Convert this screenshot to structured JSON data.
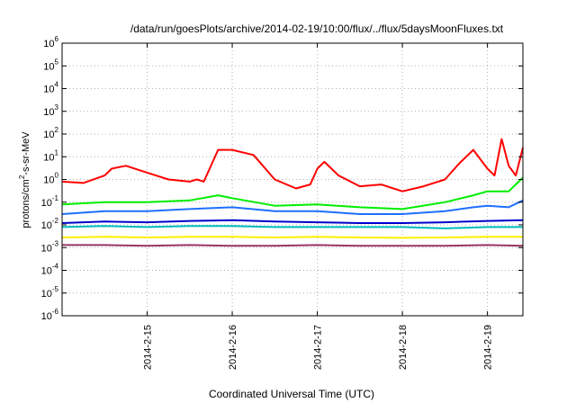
{
  "chart_data": {
    "type": "line",
    "title": "/data/run/goesPlots/archive/2014-02-19/10:00/flux/../flux/5daysMoonFluxes.txt",
    "xlabel": "Coordinated Universal Time (UTC)",
    "ylabel": "protons/cm2-s-sr-MeV",
    "ylabel_parts": {
      "pre": "protons/cm",
      "sup": "2",
      "post": "-s-sr-MeV"
    },
    "yscale": "log",
    "ylim": [
      1e-06,
      1000000.0
    ],
    "y_ticks": [
      {
        "value": 1e-06,
        "base": "10",
        "exp": "-6"
      },
      {
        "value": 1e-05,
        "base": "10",
        "exp": "-5"
      },
      {
        "value": 0.0001,
        "base": "10",
        "exp": "-4"
      },
      {
        "value": 0.001,
        "base": "10",
        "exp": "-3"
      },
      {
        "value": 0.01,
        "base": "10",
        "exp": "-2"
      },
      {
        "value": 0.1,
        "base": "10",
        "exp": "-1"
      },
      {
        "value": 1,
        "base": "10",
        "exp": "0"
      },
      {
        "value": 10.0,
        "base": "10",
        "exp": "1"
      },
      {
        "value": 100.0,
        "base": "10",
        "exp": "2"
      },
      {
        "value": 1000.0,
        "base": "10",
        "exp": "3"
      },
      {
        "value": 10000.0,
        "base": "10",
        "exp": "4"
      },
      {
        "value": 100000.0,
        "base": "10",
        "exp": "5"
      },
      {
        "value": 1000000.0,
        "base": "10",
        "exp": "6"
      }
    ],
    "xlim": [
      "2014-02-14T00:00",
      "2014-02-19T10:00"
    ],
    "x_ticks": [
      {
        "at": "2014-02-15T00:00",
        "label": "2014-2-15"
      },
      {
        "at": "2014-02-16T00:00",
        "label": "2014-2-16"
      },
      {
        "at": "2014-02-17T00:00",
        "label": "2014-2-17"
      },
      {
        "at": "2014-02-18T00:00",
        "label": "2014-2-18"
      },
      {
        "at": "2014-02-19T00:00",
        "label": "2014-2-19"
      }
    ],
    "grid": true,
    "legend": "none",
    "series": [
      {
        "color": "#ff0000",
        "x": [
          "2014-02-14T00:00",
          "2014-02-14T06:00",
          "2014-02-14T12:00",
          "2014-02-14T14:00",
          "2014-02-14T18:00",
          "2014-02-15T00:00",
          "2014-02-15T06:00",
          "2014-02-15T12:00",
          "2014-02-15T14:00",
          "2014-02-15T16:00",
          "2014-02-15T20:00",
          "2014-02-16T00:00",
          "2014-02-16T06:00",
          "2014-02-16T12:00",
          "2014-02-16T18:00",
          "2014-02-16T22:00",
          "2014-02-17T00:00",
          "2014-02-17T02:00",
          "2014-02-17T06:00",
          "2014-02-17T12:00",
          "2014-02-17T18:00",
          "2014-02-18T00:00",
          "2014-02-18T06:00",
          "2014-02-18T12:00",
          "2014-02-18T16:00",
          "2014-02-18T20:00",
          "2014-02-19T00:00",
          "2014-02-19T02:00",
          "2014-02-19T04:00",
          "2014-02-19T06:00",
          "2014-02-19T08:00",
          "2014-02-19T10:00"
        ],
        "y": [
          0.8,
          0.7,
          1.5,
          3,
          4,
          2,
          1,
          0.8,
          1,
          0.8,
          20,
          20,
          12,
          1,
          0.4,
          0.6,
          3,
          6,
          1.5,
          0.5,
          0.6,
          0.3,
          0.5,
          1,
          5,
          20,
          3,
          1.5,
          60,
          4,
          1.5,
          25
        ]
      },
      {
        "color": "#00ee00",
        "x": [
          "2014-02-14T00:00",
          "2014-02-14T12:00",
          "2014-02-15T00:00",
          "2014-02-15T12:00",
          "2014-02-15T20:00",
          "2014-02-16T00:00",
          "2014-02-16T12:00",
          "2014-02-17T00:00",
          "2014-02-17T12:00",
          "2014-02-18T00:00",
          "2014-02-18T12:00",
          "2014-02-18T20:00",
          "2014-02-19T00:00",
          "2014-02-19T06:00",
          "2014-02-19T10:00"
        ],
        "y": [
          0.08,
          0.1,
          0.1,
          0.12,
          0.2,
          0.15,
          0.07,
          0.08,
          0.06,
          0.05,
          0.1,
          0.2,
          0.3,
          0.3,
          1.2
        ]
      },
      {
        "color": "#1e6fff",
        "x": [
          "2014-02-14T00:00",
          "2014-02-14T12:00",
          "2014-02-15T00:00",
          "2014-02-15T12:00",
          "2014-02-16T00:00",
          "2014-02-16T12:00",
          "2014-02-17T00:00",
          "2014-02-17T12:00",
          "2014-02-18T00:00",
          "2014-02-18T12:00",
          "2014-02-18T20:00",
          "2014-02-19T00:00",
          "2014-02-19T06:00",
          "2014-02-19T10:00"
        ],
        "y": [
          0.03,
          0.04,
          0.04,
          0.05,
          0.06,
          0.04,
          0.04,
          0.03,
          0.03,
          0.04,
          0.06,
          0.07,
          0.06,
          0.12
        ]
      },
      {
        "color": "#0000cc",
        "x": [
          "2014-02-14T00:00",
          "2014-02-14T12:00",
          "2014-02-15T00:00",
          "2014-02-15T12:00",
          "2014-02-16T00:00",
          "2014-02-16T12:00",
          "2014-02-17T00:00",
          "2014-02-17T12:00",
          "2014-02-18T00:00",
          "2014-02-18T12:00",
          "2014-02-19T00:00",
          "2014-02-19T10:00"
        ],
        "y": [
          0.012,
          0.014,
          0.013,
          0.015,
          0.016,
          0.014,
          0.013,
          0.012,
          0.012,
          0.013,
          0.015,
          0.016
        ]
      },
      {
        "color": "#00bbbb",
        "x": [
          "2014-02-14T00:00",
          "2014-02-14T12:00",
          "2014-02-15T00:00",
          "2014-02-15T12:00",
          "2014-02-16T00:00",
          "2014-02-16T12:00",
          "2014-02-17T00:00",
          "2014-02-17T12:00",
          "2014-02-18T00:00",
          "2014-02-18T12:00",
          "2014-02-19T00:00",
          "2014-02-19T10:00"
        ],
        "y": [
          0.008,
          0.009,
          0.008,
          0.009,
          0.009,
          0.008,
          0.008,
          0.008,
          0.008,
          0.007,
          0.008,
          0.008
        ]
      },
      {
        "color": "#ffee00",
        "x": [
          "2014-02-14T00:00",
          "2014-02-14T12:00",
          "2014-02-15T00:00",
          "2014-02-15T12:00",
          "2014-02-16T00:00",
          "2014-02-16T12:00",
          "2014-02-17T00:00",
          "2014-02-17T12:00",
          "2014-02-18T00:00",
          "2014-02-18T12:00",
          "2014-02-19T00:00",
          "2014-02-19T10:00"
        ],
        "y": [
          0.0028,
          0.003,
          0.0028,
          0.003,
          0.003,
          0.0028,
          0.003,
          0.0028,
          0.0027,
          0.0028,
          0.003,
          0.003
        ]
      },
      {
        "color": "#993366",
        "x": [
          "2014-02-14T00:00",
          "2014-02-14T12:00",
          "2014-02-15T00:00",
          "2014-02-15T12:00",
          "2014-02-16T00:00",
          "2014-02-16T12:00",
          "2014-02-17T00:00",
          "2014-02-17T12:00",
          "2014-02-18T00:00",
          "2014-02-18T12:00",
          "2014-02-19T00:00",
          "2014-02-19T10:00"
        ],
        "y": [
          0.0013,
          0.0013,
          0.0012,
          0.0013,
          0.0012,
          0.0012,
          0.0013,
          0.0012,
          0.0012,
          0.0012,
          0.0013,
          0.0012
        ]
      }
    ]
  }
}
